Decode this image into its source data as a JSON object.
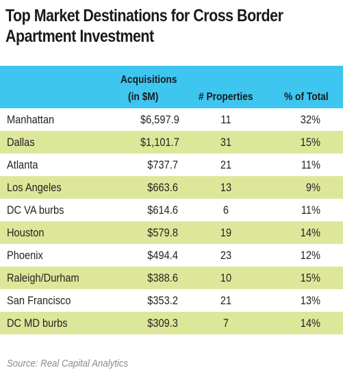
{
  "title_line1": "Top Market Destinations for Cross Border",
  "title_line2": "Apartment Investment",
  "header": {
    "acq_line1": "Acquisitions",
    "acq_line2": "(in $M)",
    "properties": "# Properties",
    "pct": "% of Total"
  },
  "source": "Source: Real Capital Analytics",
  "colors": {
    "header_bg": "#3ec6f0",
    "alt_row_bg": "#dde79a"
  },
  "chart_data": {
    "type": "table",
    "title": "Top Market Destinations for Cross Border Apartment Investment",
    "columns": [
      "",
      "Acquisitions (in $M)",
      "# Properties",
      "% of Total"
    ],
    "rows": [
      {
        "market": "Manhattan",
        "acq": "$6,597.9",
        "props": "11",
        "pct": "32%"
      },
      {
        "market": "Dallas",
        "acq": "$1,101.7",
        "props": "31",
        "pct": "15%"
      },
      {
        "market": "Atlanta",
        "acq": "$737.7",
        "props": "21",
        "pct": "11%"
      },
      {
        "market": "Los Angeles",
        "acq": "$663.6",
        "props": "13",
        "pct": "9%"
      },
      {
        "market": "DC VA burbs",
        "acq": "$614.6",
        "props": "6",
        "pct": "11%"
      },
      {
        "market": "Houston",
        "acq": "$579.8",
        "props": "19",
        "pct": "14%"
      },
      {
        "market": "Phoenix",
        "acq": "$494.4",
        "props": "23",
        "pct": "12%"
      },
      {
        "market": "Raleigh/Durham",
        "acq": "$388.6",
        "props": "10",
        "pct": "15%"
      },
      {
        "market": "San Francisco",
        "acq": "$353.2",
        "props": "21",
        "pct": "13%"
      },
      {
        "market": "DC MD burbs",
        "acq": "$309.3",
        "props": "7",
        "pct": "14%"
      }
    ]
  }
}
